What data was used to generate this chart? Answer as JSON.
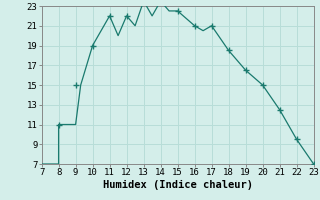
{
  "x": [
    7,
    8,
    8,
    9,
    9.3,
    10,
    10,
    11,
    11.5,
    12,
    12.5,
    13,
    13.5,
    14,
    14.5,
    15,
    16,
    16.5,
    17,
    18,
    19,
    20,
    21,
    22,
    23,
    23
  ],
  "y": [
    7,
    7,
    11,
    11,
    15,
    19,
    19,
    22,
    20,
    22,
    21,
    23.5,
    22,
    23.5,
    22.5,
    22.5,
    21,
    20.5,
    21,
    18.5,
    16.5,
    15,
    12.5,
    9.5,
    7,
    7
  ],
  "marker_x": [
    8,
    9,
    10,
    11,
    12,
    13,
    14,
    15,
    16,
    17,
    18,
    19,
    20,
    21,
    22,
    23
  ],
  "marker_y": [
    11,
    15,
    19,
    22,
    22,
    23.5,
    23.5,
    22.5,
    21,
    21,
    18.5,
    16.5,
    15,
    12.5,
    9.5,
    7
  ],
  "line_color": "#1a7a6e",
  "bg_color": "#d4eeea",
  "grid_color": "#b8ddd8",
  "xlabel": "Humidex (Indice chaleur)",
  "xlim": [
    7,
    23
  ],
  "ylim": [
    7,
    23
  ],
  "xticks": [
    7,
    8,
    9,
    10,
    11,
    12,
    13,
    14,
    15,
    16,
    17,
    18,
    19,
    20,
    21,
    22,
    23
  ],
  "yticks": [
    7,
    9,
    11,
    13,
    15,
    17,
    19,
    21,
    23
  ],
  "xlabel_fontsize": 7.5,
  "tick_fontsize": 6.5
}
